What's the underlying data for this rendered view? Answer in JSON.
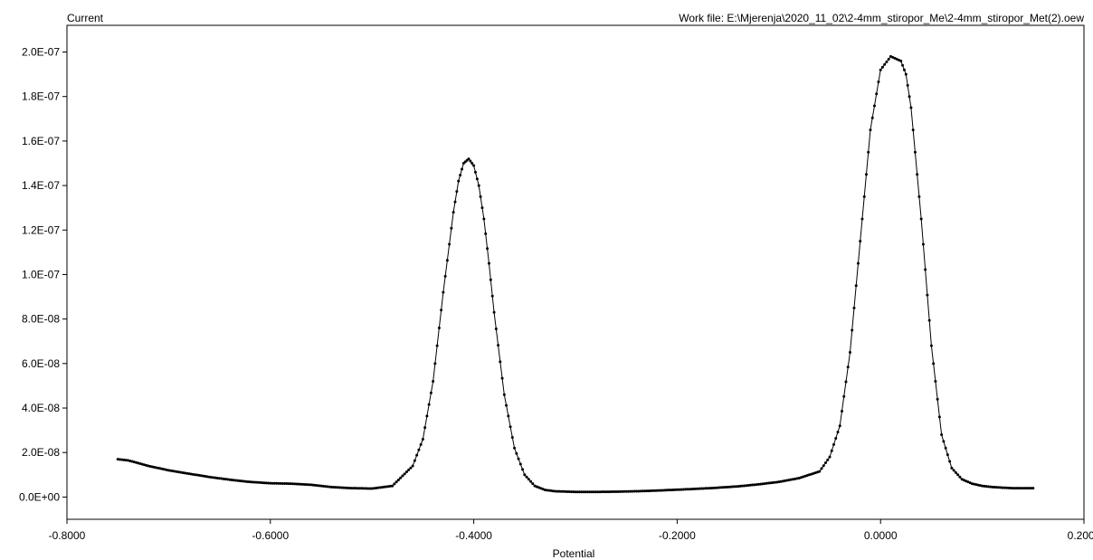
{
  "header": {
    "ylabel": "Current",
    "work_file": "Work file: E:\\Mjerenja\\2020_11_02\\2-4mm_stiropor_Me\\2-4mm_stiropor_Met(2).oew"
  },
  "chart_data": {
    "type": "scatter",
    "xlabel": "Potential",
    "ylabel": "Current",
    "xlim": [
      -0.8,
      0.2
    ],
    "ylim": [
      -1e-08,
      2.12e-07
    ],
    "x_ticks": [
      -0.8,
      -0.6,
      -0.4,
      -0.2,
      0.0,
      0.2
    ],
    "x_tick_labels": [
      "-0.8000",
      "-0.6000",
      "-0.4000",
      "-0.2000",
      "0.0000",
      "0.2000"
    ],
    "y_ticks": [
      0,
      2e-08,
      4e-08,
      6e-08,
      8e-08,
      1e-07,
      1.2e-07,
      1.4e-07,
      1.6e-07,
      1.8e-07,
      2e-07
    ],
    "y_tick_labels": [
      "0.0E+00",
      "2.0E-08",
      "4.0E-08",
      "6.0E-08",
      "8.0E-08",
      "1.0E-07",
      "1.2E-07",
      "1.4E-07",
      "1.6E-07",
      "1.8E-07",
      "2.0E-07"
    ],
    "grid": false,
    "series": [
      {
        "color": "#000000",
        "x": [
          -0.75,
          -0.74,
          -0.72,
          -0.7,
          -0.68,
          -0.66,
          -0.64,
          -0.62,
          -0.6,
          -0.58,
          -0.56,
          -0.54,
          -0.52,
          -0.5,
          -0.48,
          -0.46,
          -0.45,
          -0.44,
          -0.43,
          -0.42,
          -0.415,
          -0.41,
          -0.405,
          -0.4,
          -0.395,
          -0.39,
          -0.385,
          -0.38,
          -0.37,
          -0.36,
          -0.35,
          -0.34,
          -0.33,
          -0.32,
          -0.3,
          -0.28,
          -0.26,
          -0.24,
          -0.22,
          -0.2,
          -0.18,
          -0.16,
          -0.14,
          -0.12,
          -0.1,
          -0.08,
          -0.06,
          -0.05,
          -0.04,
          -0.03,
          -0.02,
          -0.01,
          0.0,
          0.01,
          0.02,
          0.025,
          0.03,
          0.04,
          0.05,
          0.06,
          0.07,
          0.08,
          0.09,
          0.1,
          0.11,
          0.12,
          0.13,
          0.14,
          0.15
        ],
        "y": [
          1.7e-08,
          1.65e-08,
          1.4e-08,
          1.2e-08,
          1.05e-08,
          9e-09,
          7.8e-09,
          6.8e-09,
          6.2e-09,
          6e-09,
          5.5e-09,
          4.5e-09,
          4e-09,
          3.8e-09,
          5e-09,
          1.4e-08,
          2.6e-08,
          5.2e-08,
          9.2e-08,
          1.28e-07,
          1.42e-07,
          1.5e-07,
          1.52e-07,
          1.49e-07,
          1.4e-07,
          1.25e-07,
          1.05e-07,
          8.3e-08,
          4.6e-08,
          2.2e-08,
          1e-08,
          5e-09,
          3.2e-09,
          2.6e-09,
          2.3e-09,
          2.3e-09,
          2.4e-09,
          2.6e-09,
          2.9e-09,
          3.3e-09,
          3.7e-09,
          4.2e-09,
          4.8e-09,
          5.7e-09,
          6.8e-09,
          8.5e-09,
          1.15e-08,
          1.8e-08,
          3.2e-08,
          6.5e-08,
          1.15e-07,
          1.65e-07,
          1.92e-07,
          1.98e-07,
          1.96e-07,
          1.9e-07,
          1.75e-07,
          1.25e-07,
          6.8e-08,
          2.8e-08,
          1.3e-08,
          8e-09,
          6e-09,
          5e-09,
          4.5e-09,
          4.2e-09,
          4e-09,
          4e-09,
          4e-09
        ]
      }
    ]
  }
}
